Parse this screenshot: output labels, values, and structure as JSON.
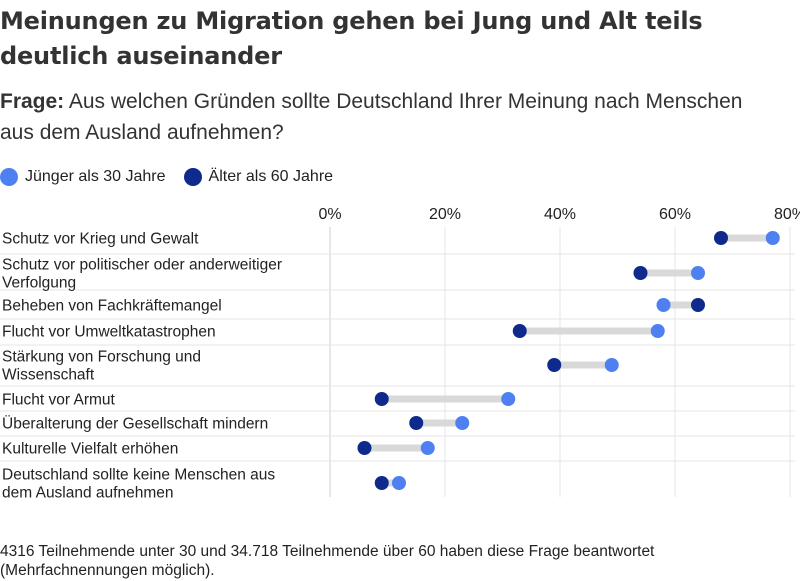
{
  "title": "Meinungen zu Migration gehen bei Jung und Alt teils deutlich auseinander",
  "question": {
    "label": "Frage:",
    "text": "Aus welchen Gründen sollte Deutschland Ihrer Meinung nach Menschen aus dem Ausland aufnehmen?"
  },
  "legend": {
    "young": "Jünger als 30 Jahre",
    "old": "Älter als 60 Jahre"
  },
  "colors": {
    "young": "#4f80f2",
    "old": "#0d2a8c",
    "connector": "#d9d9d9",
    "grid": "#e6e6e6"
  },
  "footnote": "4316 Teilnehmende unter 30 und 34.718 Teilnehmende über 60 haben diese Frage beantwortet (Mehrfachnennungen möglich).",
  "chart_data": {
    "type": "scatter",
    "subtype": "dumbbell",
    "xlim": [
      0,
      80
    ],
    "xticks": [
      "0%",
      "20%",
      "40%",
      "60%",
      "80%"
    ],
    "xtick_values": [
      0,
      20,
      40,
      60,
      80
    ],
    "grid": true,
    "categories": [
      [
        "Schutz vor Krieg und Gewalt"
      ],
      [
        "Schutz vor politischer oder anderweitiger",
        "Verfolgung"
      ],
      [
        "Beheben von Fachkräftemangel"
      ],
      [
        "Flucht vor Umweltkatastrophen"
      ],
      [
        "Stärkung von Forschung und",
        "Wissenschaft"
      ],
      [
        "Flucht vor Armut"
      ],
      [
        "Überalterung der Gesellschaft mindern"
      ],
      [
        "Kulturelle Vielfalt erhöhen"
      ],
      [
        "Deutschland sollte keine Menschen aus",
        "dem Ausland aufnehmen"
      ]
    ],
    "series": [
      {
        "name": "Jünger als 30 Jahre",
        "values": [
          77,
          64,
          58,
          57,
          49,
          31,
          23,
          17,
          12
        ]
      },
      {
        "name": "Älter als 60 Jahre",
        "values": [
          68,
          54,
          64,
          33,
          39,
          9,
          15,
          6,
          9
        ]
      }
    ]
  }
}
